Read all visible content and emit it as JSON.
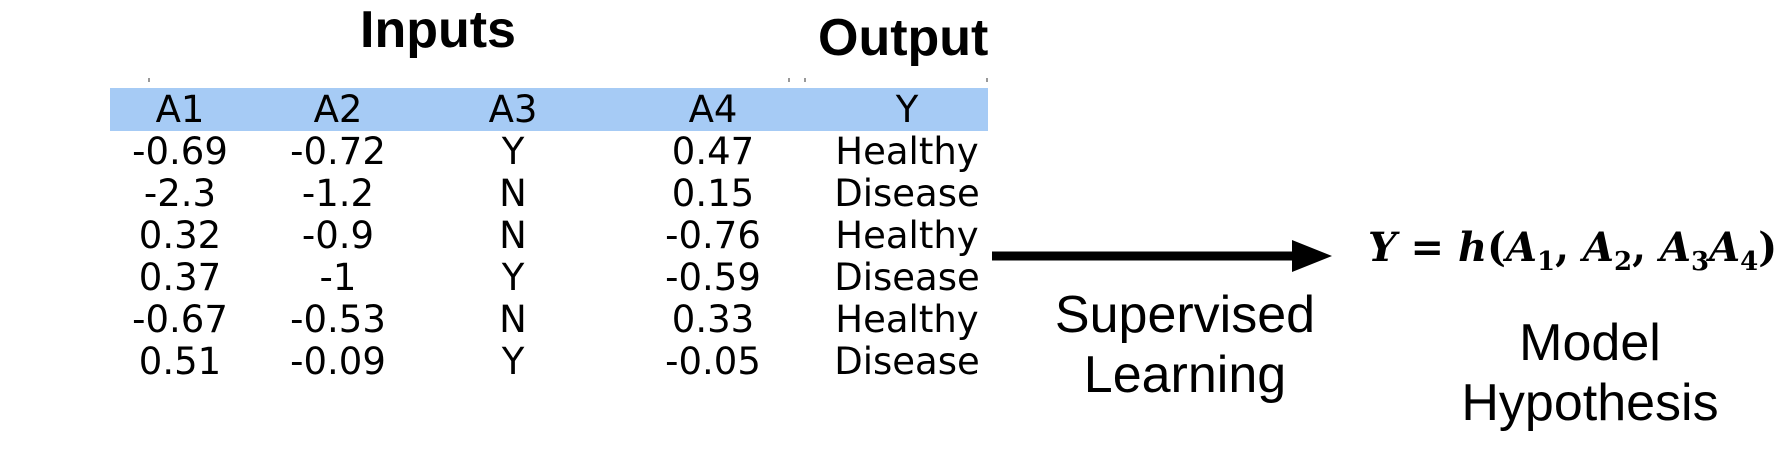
{
  "headers": {
    "inputs": "Inputs",
    "output": "Output"
  },
  "table": {
    "columns": [
      "A1",
      "A2",
      "A3",
      "A4",
      "Y"
    ],
    "rows": [
      [
        "-0.69",
        "-0.72",
        "Y",
        "0.47",
        "Healthy"
      ],
      [
        "-2.3",
        "-1.2",
        "N",
        "0.15",
        "Disease"
      ],
      [
        "0.32",
        "-0.9",
        "N",
        "-0.76",
        "Healthy"
      ],
      [
        "0.37",
        "-1",
        "Y",
        "-0.59",
        "Disease"
      ],
      [
        "-0.67",
        "-0.53",
        "N",
        "0.33",
        "Healthy"
      ],
      [
        "0.51",
        "-0.09",
        "Y",
        "-0.05",
        "Disease"
      ]
    ],
    "header_color": "#a6cbf5"
  },
  "arrow": {
    "label_line1": "Supervised",
    "label_line2": "Learning"
  },
  "formula": {
    "lhs": "Y",
    "eq": " = ",
    "func": "h",
    "open": "(",
    "a1": "A",
    "s1": "1",
    "c1": ", ",
    "a2": "A",
    "s2": "2",
    "c2": ", ",
    "a3": "A",
    "s3": "3",
    "a4": "A",
    "s4": "4",
    "close": ")"
  },
  "model": {
    "line1": "Model",
    "line2": "Hypothesis"
  }
}
